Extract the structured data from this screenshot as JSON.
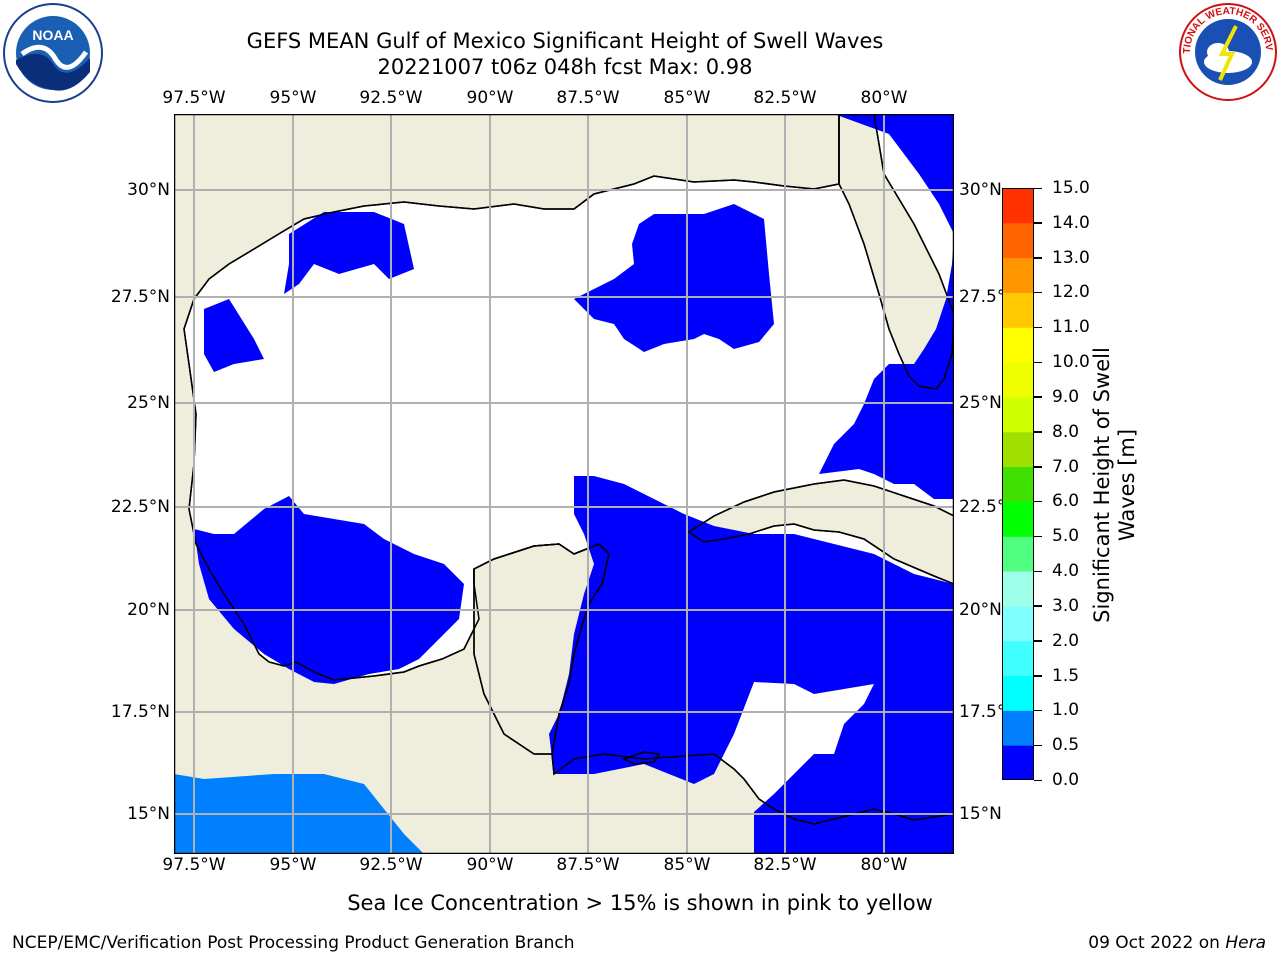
{
  "header": {
    "title_line1": "GEFS MEAN Gulf of Mexico Significant Height of Swell Waves",
    "title_line2": "20221007 t06z 048h fcst   Max: 0.98"
  },
  "logos": {
    "left": {
      "icon": "noaa-logo-icon",
      "text": "NOAA"
    },
    "right": {
      "icon": "national-weather-service-logo-icon",
      "text": "NATIONAL WEATHER SERVICE"
    }
  },
  "map": {
    "lon_ticks": [
      "97.5°W",
      "95°W",
      "92.5°W",
      "90°W",
      "87.5°W",
      "85°W",
      "82.5°W",
      "80°W"
    ],
    "lat_ticks": [
      "30°N",
      "27.5°N",
      "25°N",
      "22.5°N",
      "20°N",
      "17.5°N",
      "15°N"
    ],
    "land_color": "#efeedd",
    "ocean_low_color": "#0000ff",
    "ocean_mid_color": "#0080ff",
    "grid_color": "#b0b0b0"
  },
  "colorbar": {
    "title": "Significant Height of Swell Waves [m]",
    "ticks": [
      "0.0",
      "0.5",
      "1.0",
      "1.5",
      "2.0",
      "3.0",
      "4.0",
      "5.0",
      "6.0",
      "7.0",
      "8.0",
      "9.0",
      "10.0",
      "11.0",
      "12.0",
      "13.0",
      "14.0",
      "15.0"
    ],
    "colors": [
      "#0000ff",
      "#0080ff",
      "#00ffff",
      "#40ffff",
      "#80ffff",
      "#a0ffe8",
      "#50ff80",
      "#00ff00",
      "#40e000",
      "#a0e000",
      "#d0ff00",
      "#f0ff00",
      "#ffff00",
      "#ffc800",
      "#ff9600",
      "#ff6400",
      "#ff3200",
      "#ff0000"
    ]
  },
  "footer": {
    "note": "Sea Ice Concentration > 15% is shown in pink to yellow",
    "credit": "NCEP/EMC/Verification Post Processing Product Generation Branch",
    "date_prefix": "09 Oct 2022 on ",
    "machine": "Hera"
  }
}
